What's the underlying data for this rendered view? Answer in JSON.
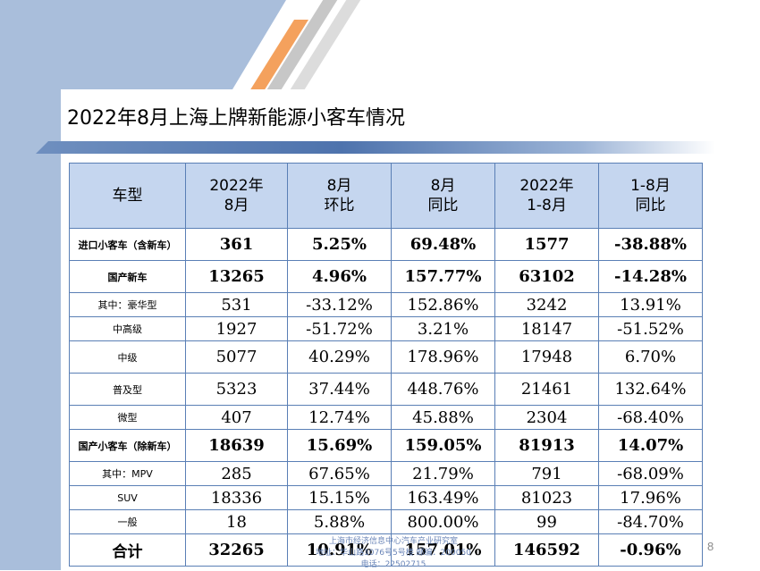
{
  "title": "2022年8月上海上牌新能源小客车情况",
  "page_number": "8",
  "footer": {
    "line1": "上海市经济信息中心汽车产业研究室",
    "line2": "地址：华山路1076号5号楼   邮编：200050",
    "line3": "电话：22502715"
  },
  "table": {
    "headers": [
      "车型",
      "2022年\n8月",
      "8月\n环比",
      "8月\n同比",
      "2022年\n1-8月",
      "1-8月\n同比"
    ],
    "rows": [
      [
        "进口小客车（含新车）",
        "361",
        "5.25%",
        "69.48%",
        "1577",
        "-38.88%"
      ],
      [
        "国产新车",
        "13265",
        "4.96%",
        "157.77%",
        "63102",
        "-14.28%"
      ],
      [
        "其中：豪华型",
        "531",
        "-33.12%",
        "152.86%",
        "3242",
        "13.91%"
      ],
      [
        "中高级",
        "1927",
        "-51.72%",
        "3.21%",
        "18147",
        "-51.52%"
      ],
      [
        "中级",
        "5077",
        "40.29%",
        "178.96%",
        "17948",
        "6.70%"
      ],
      [
        "普及型",
        "5323",
        "37.44%",
        "448.76%",
        "21461",
        "132.64%"
      ],
      [
        "微型",
        "407",
        "12.74%",
        "45.88%",
        "2304",
        "-68.40%"
      ],
      [
        "国产小客车（除新车）",
        "18639",
        "15.69%",
        "159.05%",
        "81913",
        "14.07%"
      ],
      [
        "其中：MPV",
        "285",
        "67.65%",
        "21.79%",
        "791",
        "-68.09%"
      ],
      [
        "SUV",
        "18336",
        "15.15%",
        "163.49%",
        "81023",
        "17.96%"
      ],
      [
        "一般",
        "18",
        "5.88%",
        "800.00%",
        "99",
        "-84.70%"
      ],
      [
        "合计",
        "32265",
        "10.91%",
        "157.01%",
        "146592",
        "-0.96%"
      ]
    ]
  }
}
